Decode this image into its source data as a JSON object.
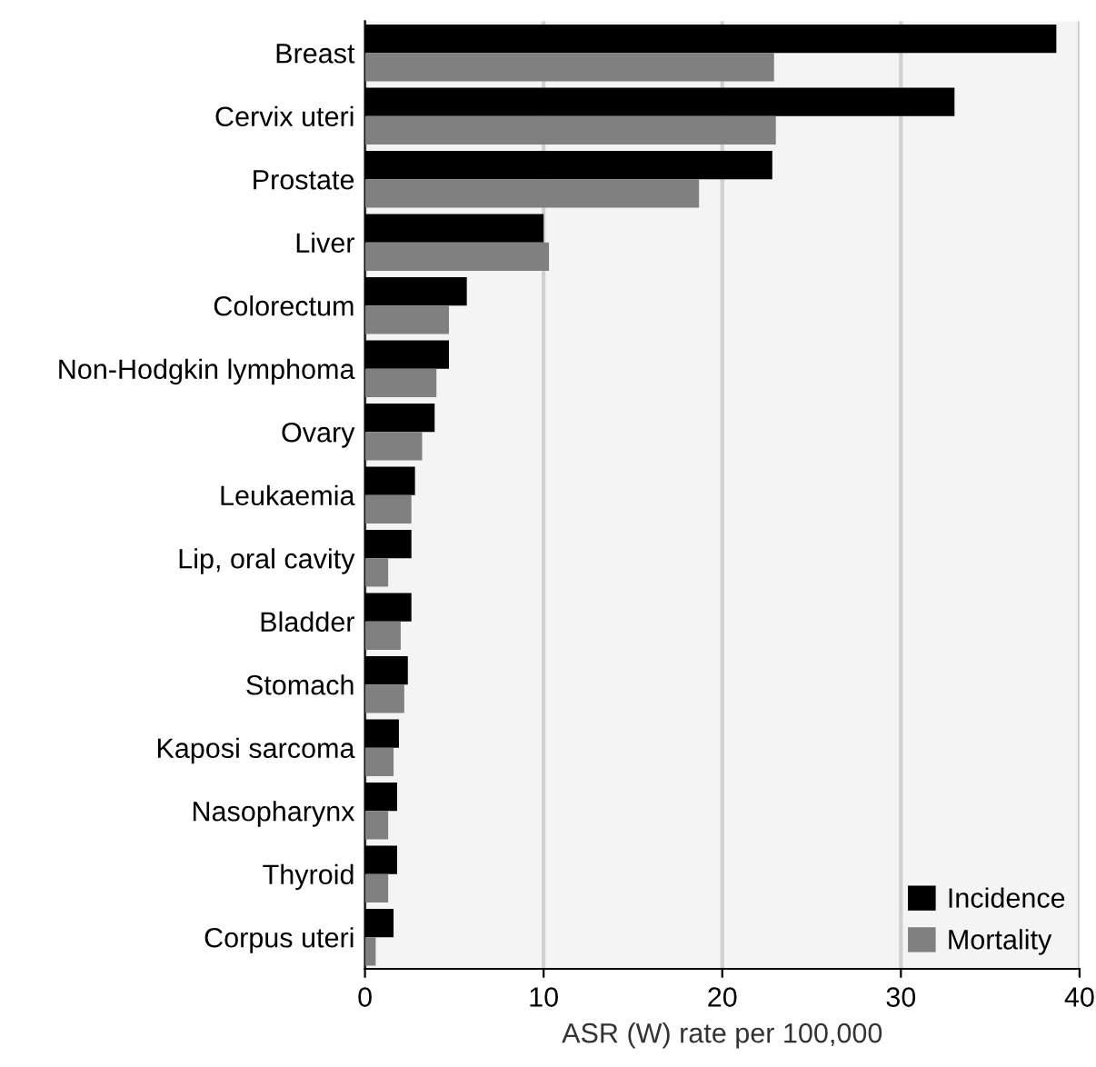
{
  "chart_data": {
    "type": "bar",
    "orientation": "horizontal",
    "xlabel": "ASR (W) rate per 100,000",
    "categories": [
      "Breast",
      "Cervix uteri",
      "Prostate",
      "Liver",
      "Colorectum",
      "Non-Hodgkin lymphoma",
      "Ovary",
      "Leukaemia",
      "Lip, oral cavity",
      "Bladder",
      "Stomach",
      "Kaposi sarcoma",
      "Nasopharynx",
      "Thyroid",
      "Corpus uteri"
    ],
    "series": [
      {
        "name": "Incidence",
        "color": "#000000",
        "values": [
          38.7,
          33.0,
          22.8,
          10.0,
          5.7,
          4.7,
          3.9,
          2.8,
          2.6,
          2.6,
          2.4,
          1.9,
          1.8,
          1.8,
          1.6
        ]
      },
      {
        "name": "Mortality",
        "color": "#808080",
        "values": [
          22.9,
          23.0,
          18.7,
          10.3,
          4.7,
          4.0,
          3.2,
          2.6,
          1.3,
          2.0,
          2.2,
          1.6,
          1.3,
          1.3,
          0.6
        ]
      }
    ],
    "xlim": [
      0,
      40
    ],
    "xticks": [
      0,
      10,
      20,
      30,
      40
    ],
    "grid": "x",
    "legend": "bottom right"
  }
}
